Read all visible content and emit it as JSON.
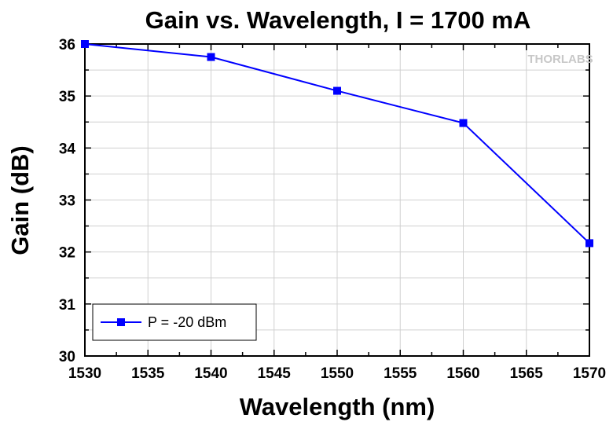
{
  "chart_data": {
    "type": "line",
    "title": "Gain vs. Wavelength, I = 1700 mA",
    "xlabel": "Wavelength (nm)",
    "ylabel": "Gain (dB)",
    "xlim": [
      1530,
      1570
    ],
    "ylim": [
      30,
      36
    ],
    "x_major_ticks": [
      1530,
      1535,
      1540,
      1545,
      1550,
      1555,
      1560,
      1565,
      1570
    ],
    "x_tick_labels": [
      "1530",
      "1535",
      "1540",
      "1545",
      "1550",
      "1555",
      "1560",
      "1565",
      "1570"
    ],
    "y_major_ticks": [
      30,
      31,
      32,
      33,
      34,
      35,
      36
    ],
    "y_tick_labels": [
      "30",
      "31",
      "32",
      "33",
      "34",
      "35",
      "36"
    ],
    "grid": true,
    "legend_position": "bottom-left",
    "series": [
      {
        "name": "P = -20 dBm",
        "color": "#0000ff",
        "marker": "square",
        "x": [
          1530,
          1540,
          1550,
          1560,
          1570
        ],
        "y": [
          36.0,
          35.75,
          35.1,
          34.48,
          32.17
        ]
      }
    ],
    "watermark": "THORLABS"
  }
}
